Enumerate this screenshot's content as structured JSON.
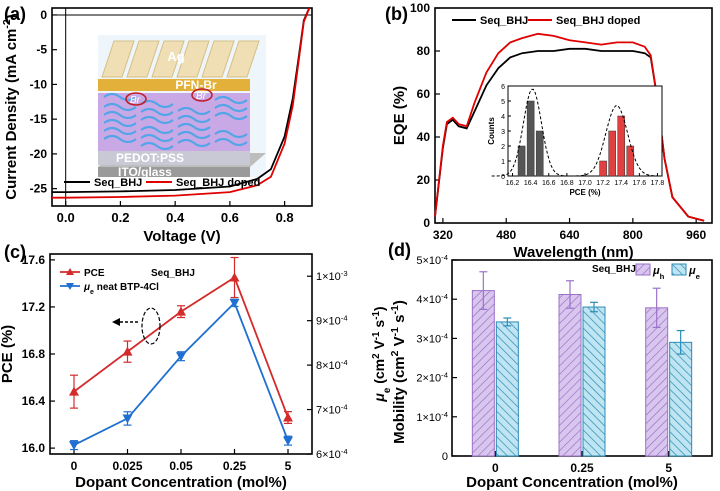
{
  "chart_data": [
    {
      "panel": "(a)",
      "type": "line",
      "xlabel": "Voltage (V)",
      "ylabel": "Current Density (mA cm-2)",
      "xlim": [
        -0.05,
        0.9
      ],
      "ylim": [
        -27.5,
        1
      ],
      "xticks": [
        "0.0",
        "0.2",
        "0.4",
        "0.6",
        "0.8"
      ],
      "yticks": [
        "0",
        "-5",
        "-10",
        "-15",
        "-20",
        "-25"
      ],
      "legend": "bottom-left",
      "series": [
        {
          "name": "Seq_BHJ",
          "color": "#000000",
          "x": [
            -0.05,
            0.0,
            0.2,
            0.4,
            0.6,
            0.7,
            0.75,
            0.8,
            0.83,
            0.85,
            0.87,
            0.89
          ],
          "y": [
            -25.5,
            -25.5,
            -25.4,
            -25.2,
            -24.7,
            -23.6,
            -22.2,
            -17.5,
            -12.0,
            -6.5,
            -0.8,
            1.0
          ]
        },
        {
          "name": "Seq_BHJ doped",
          "color": "#e00000",
          "x": [
            -0.05,
            0.0,
            0.2,
            0.4,
            0.6,
            0.7,
            0.75,
            0.8,
            0.83,
            0.85,
            0.87,
            0.89
          ],
          "y": [
            -26.3,
            -26.3,
            -26.2,
            -26.0,
            -25.5,
            -24.5,
            -23.3,
            -18.5,
            -13.0,
            -7.0,
            -1.0,
            1.0
          ]
        }
      ],
      "inset_labels": [
        "Ag",
        "PFN-Br",
        "Br",
        "Br",
        "PEDOT:PSS",
        "ITO/glass"
      ]
    },
    {
      "panel": "(b)",
      "type": "line",
      "xlabel": "Wavelength (nm)",
      "ylabel": "EQE (%)",
      "xlim": [
        300,
        1000
      ],
      "ylim": [
        0,
        100
      ],
      "xticks": [
        "320",
        "480",
        "640",
        "800",
        "960"
      ],
      "yticks": [
        "0",
        "20",
        "40",
        "60",
        "80",
        "100"
      ],
      "legend": "top-left",
      "series": [
        {
          "name": "Seq_BHJ",
          "color": "#000000",
          "x": [
            300,
            320,
            330,
            345,
            360,
            380,
            400,
            430,
            460,
            490,
            520,
            560,
            600,
            640,
            680,
            720,
            760,
            800,
            830,
            845,
            860,
            880,
            900,
            940,
            980
          ],
          "y": [
            3,
            35,
            46,
            48,
            45,
            44,
            52,
            64,
            72,
            77,
            79,
            80,
            80,
            81,
            81,
            80,
            80,
            80,
            79,
            77,
            60,
            30,
            12,
            3,
            1
          ]
        },
        {
          "name": "Seq_BHJ doped",
          "color": "#e00000",
          "x": [
            300,
            320,
            330,
            345,
            360,
            380,
            400,
            430,
            460,
            490,
            520,
            560,
            600,
            640,
            680,
            720,
            760,
            800,
            830,
            845,
            860,
            880,
            900,
            940,
            980
          ],
          "y": [
            3,
            36,
            47,
            49,
            46,
            45,
            56,
            70,
            79,
            84,
            86,
            88,
            87,
            85,
            84,
            83,
            84,
            84,
            82,
            78,
            60,
            30,
            12,
            3,
            1
          ]
        }
      ],
      "inset": {
        "type": "bar",
        "xlabel": "PCE (%)",
        "ylabel": "Counts",
        "xticks": [
          "16.2",
          "16.4",
          "16.6",
          "16.8",
          "17.0",
          "17.2",
          "17.4",
          "17.6",
          "17.8"
        ],
        "yticks": [
          "0",
          "1",
          "2",
          "3",
          "4",
          "5",
          "6"
        ],
        "xlim": [
          16.15,
          17.85
        ],
        "ylim": [
          0,
          6
        ],
        "bars": [
          {
            "x": 16.3,
            "value": 2,
            "color": "#555555"
          },
          {
            "x": 16.4,
            "value": 5,
            "color": "#555555"
          },
          {
            "x": 16.5,
            "value": 3,
            "color": "#555555"
          },
          {
            "x": 17.2,
            "value": 1,
            "color": "#e04040"
          },
          {
            "x": 17.3,
            "value": 3,
            "color": "#e04040"
          },
          {
            "x": 17.4,
            "value": 4,
            "color": "#e04040"
          },
          {
            "x": 17.5,
            "value": 2,
            "color": "#e04040"
          }
        ]
      }
    },
    {
      "panel": "(c)",
      "type": "line",
      "xlabel": "Dopant Concentration (mol%)",
      "ylabel": "PCE (%)",
      "ylabel_right": "μe (cm2 V-1 s-1)",
      "categories": [
        "0",
        "0.025",
        "0.05",
        "0.25",
        "5"
      ],
      "ylim": [
        15.95,
        17.65
      ],
      "yticks": [
        "16.0",
        "16.4",
        "16.8",
        "17.2",
        "17.6"
      ],
      "ylim_right": [
        0.0006,
        0.00105
      ],
      "yticks_right": [
        "6x10-4",
        "7x10-4",
        "8x10-4",
        "9x10-4",
        "1x10-3"
      ],
      "legend": "top-left",
      "legend_header": "Seq_BHJ",
      "series": [
        {
          "name": "PCE",
          "axis": "left",
          "color": "#d42a2a",
          "marker": "triangle-up",
          "values": [
            16.48,
            16.82,
            17.16,
            17.45,
            16.26
          ],
          "errors": [
            0.14,
            0.09,
            0.05,
            0.17,
            0.05
          ]
        },
        {
          "name": "μe neat BTP-4Cl",
          "axis": "right",
          "color": "#1f6fd1",
          "marker": "triangle-down",
          "values": [
            0.00062,
            0.00068,
            0.00082,
            0.00094,
            0.00063
          ],
          "errors": [
            1e-05,
            1.5e-05,
            1e-05,
            8e-06,
            1e-05
          ]
        }
      ]
    },
    {
      "panel": "(d)",
      "type": "bar",
      "xlabel": "Dopant Concentration (mol%)",
      "ylabel": "Mobility (cm2 V-1 s-1)",
      "categories": [
        "0",
        "0.25",
        "5"
      ],
      "ylim": [
        0,
        0.0005
      ],
      "yticks": [
        "0",
        "1x10-4",
        "2x10-4",
        "3x10-4",
        "4x10-4",
        "5x10-4"
      ],
      "legend": "top-right",
      "legend_header": "Seq_BHJ",
      "series": [
        {
          "name": "μh",
          "fill": "#d9c6ee",
          "stroke": "#9b72c8",
          "values": [
            0.000422,
            0.000412,
            0.000378
          ],
          "errors": [
            4.8e-05,
            3.5e-05,
            5e-05
          ]
        },
        {
          "name": "μe",
          "fill": "#bfe4f2",
          "stroke": "#2b8cb5",
          "values": [
            0.000342,
            0.00038,
            0.00029
          ],
          "errors": [
            1e-05,
            1.2e-05,
            3e-05
          ]
        }
      ]
    }
  ]
}
